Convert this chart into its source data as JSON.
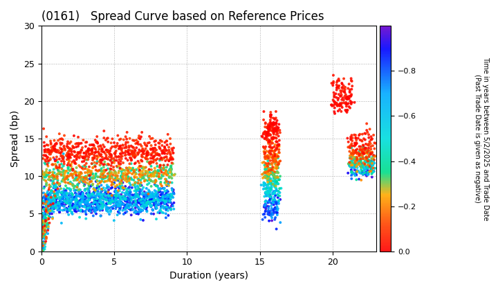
{
  "title": "(0161)   Spread Curve based on Reference Prices",
  "xlabel": "Duration (years)",
  "ylabel": "Spread (bp)",
  "colorbar_label_line1": "Time in years between 5/2/2025 and Trade Date",
  "colorbar_label_line2": "(Past Trade Date is given as negative)",
  "xlim": [
    0,
    23
  ],
  "ylim": [
    0,
    30
  ],
  "xticks": [
    0,
    5,
    10,
    15,
    20
  ],
  "yticks": [
    0,
    5,
    10,
    15,
    20,
    25,
    30
  ],
  "clim": [
    -1.0,
    0.0
  ],
  "cticks": [
    0.0,
    -0.2,
    -0.4,
    -0.6,
    -0.8
  ],
  "background_color": "#ffffff",
  "grid_color": "#888888",
  "figsize": [
    7.2,
    4.2
  ],
  "dpi": 100,
  "marker_size": 8
}
